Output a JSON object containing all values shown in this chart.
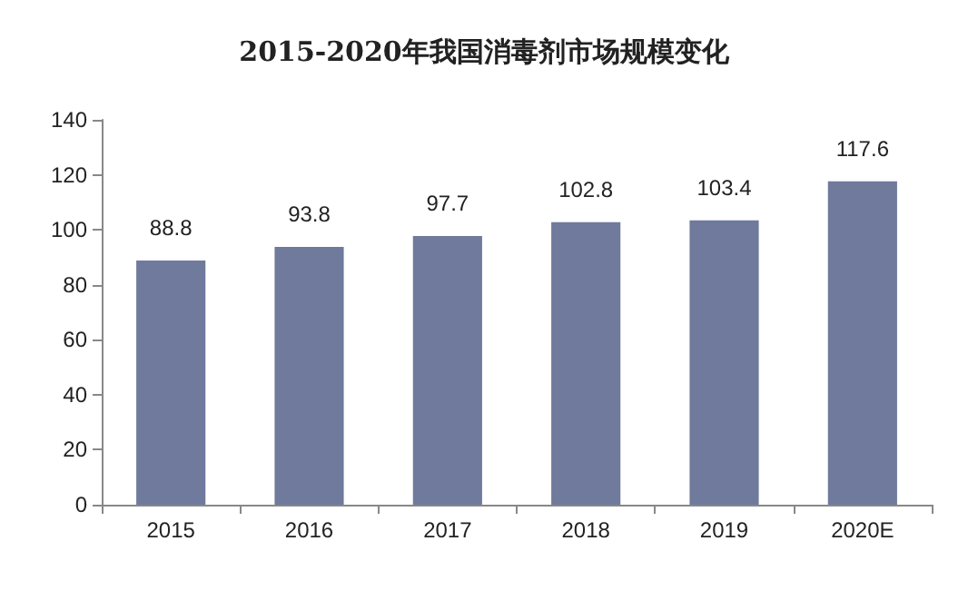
{
  "chart_data": {
    "type": "bar",
    "title": "2015-2020年我国消毒剂市场规模变化",
    "categories": [
      "2015",
      "2016",
      "2017",
      "2018",
      "2019",
      "2020E"
    ],
    "values": [
      88.8,
      93.8,
      97.7,
      102.8,
      103.4,
      117.6
    ],
    "color": "#6f7a9c",
    "ylim": [
      0,
      140
    ],
    "yticks": [
      0,
      20,
      40,
      60,
      80,
      100,
      120,
      140
    ],
    "grid": false,
    "data_labels": true
  }
}
